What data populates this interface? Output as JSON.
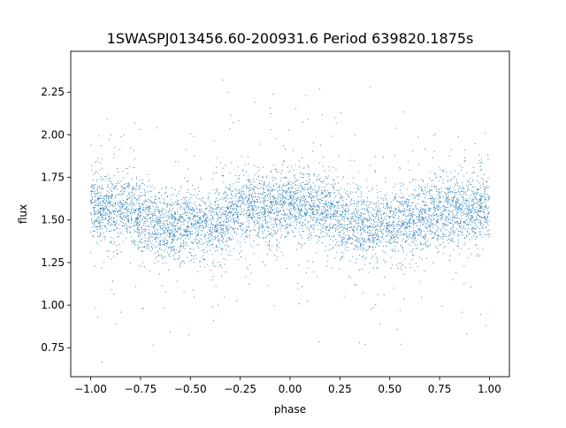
{
  "chart_data": {
    "type": "scatter",
    "title": "1SWASPJ013456.60-200931.6 Period 639820.1875s",
    "xlabel": "phase",
    "ylabel": "flux",
    "xlim": [
      -1.1,
      1.1
    ],
    "ylim": [
      0.58,
      2.49
    ],
    "grid": false,
    "legend": "none",
    "marker_color": "#1f77b4",
    "x_ticks": [
      -1.0,
      -0.75,
      -0.5,
      -0.25,
      0.0,
      0.25,
      0.5,
      0.75,
      1.0
    ],
    "x_tick_labels": [
      "−1.00",
      "−0.75",
      "−0.50",
      "−0.25",
      "0.00",
      "0.25",
      "0.50",
      "0.75",
      "1.00"
    ],
    "y_ticks": [
      0.75,
      1.0,
      1.25,
      1.5,
      1.75,
      2.0,
      2.25
    ],
    "y_tick_labels": [
      "0.75",
      "1.00",
      "1.25",
      "1.50",
      "1.75",
      "2.00",
      "2.25"
    ],
    "phase_range": [
      -1.0,
      1.0
    ],
    "binned_profile": {
      "phase": [
        -1.0,
        -0.9,
        -0.8,
        -0.7,
        -0.6,
        -0.5,
        -0.4,
        -0.3,
        -0.2,
        -0.1,
        0.0,
        0.1,
        0.2,
        0.3,
        0.4,
        0.5,
        0.6,
        0.7,
        0.8,
        0.9,
        1.0
      ],
      "median_flux": [
        1.58,
        1.57,
        1.56,
        1.5,
        1.45,
        1.47,
        1.46,
        1.53,
        1.58,
        1.57,
        1.58,
        1.57,
        1.55,
        1.5,
        1.45,
        1.46,
        1.47,
        1.52,
        1.56,
        1.57,
        1.58
      ],
      "core_spread": 0.1,
      "outlier_range": [
        0.65,
        2.4
      ]
    }
  }
}
